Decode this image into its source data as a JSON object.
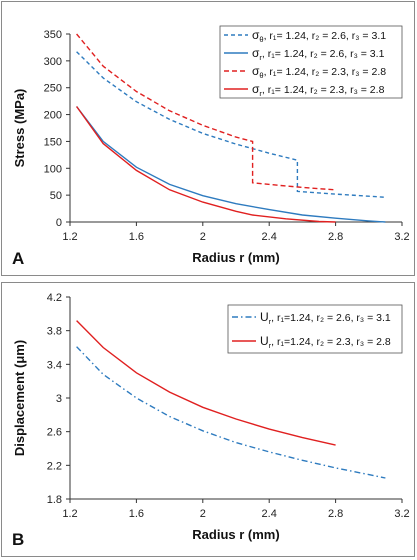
{
  "chart_data": [
    {
      "panel_label": "A",
      "type": "line",
      "xlabel": "Radius r (mm)",
      "ylabel": "Stress (MPa)",
      "xlim": [
        1.2,
        3.2
      ],
      "ylim": [
        0,
        350
      ],
      "xticks": [
        "1.2",
        "1.6",
        "2",
        "2.4",
        "2.8",
        "3.2"
      ],
      "yticks": [
        "0",
        "50",
        "100",
        "150",
        "200",
        "250",
        "300",
        "350"
      ],
      "grid": false,
      "legend_position": "top-right",
      "series": [
        {
          "symbol": "σ",
          "sub": "θ",
          "legend_text": ", r₁= 1.24, r₂ = 2.6, r₃ = 3.1",
          "color": "#2e7bbf",
          "dash": "4,3",
          "points": [
            [
              1.24,
              317
            ],
            [
              1.4,
              268
            ],
            [
              1.6,
              224
            ],
            [
              1.8,
              191
            ],
            [
              2.0,
              165
            ],
            [
              2.2,
              145
            ],
            [
              2.4,
              128
            ],
            [
              2.57,
              115
            ],
            [
              2.57,
              57
            ],
            [
              2.8,
              52
            ],
            [
              3.0,
              48
            ],
            [
              3.1,
              46
            ]
          ]
        },
        {
          "symbol": "σ",
          "sub": "r",
          "legend_text": ", r₁= 1.24, r₂ = 2.6, r₃ = 3.1",
          "color": "#2e7bbf",
          "dash": "",
          "points": [
            [
              1.24,
              215
            ],
            [
              1.4,
              150
            ],
            [
              1.6,
              102
            ],
            [
              1.8,
              70
            ],
            [
              2.0,
              49
            ],
            [
              2.2,
              34
            ],
            [
              2.4,
              23
            ],
            [
              2.6,
              13
            ],
            [
              2.8,
              7
            ],
            [
              3.0,
              2
            ],
            [
              3.1,
              0
            ]
          ]
        },
        {
          "symbol": "σ",
          "sub": "θ",
          "legend_text": ", r₁= 1.24, r₂ = 2.3, r₃ = 2.8",
          "color": "#e02020",
          "dash": "5,3",
          "points": [
            [
              1.24,
              350
            ],
            [
              1.4,
              290
            ],
            [
              1.6,
              243
            ],
            [
              1.8,
              207
            ],
            [
              2.0,
              180
            ],
            [
              2.2,
              158
            ],
            [
              2.3,
              150
            ],
            [
              2.3,
              73
            ],
            [
              2.5,
              67
            ],
            [
              2.7,
              62
            ],
            [
              2.8,
              60
            ]
          ]
        },
        {
          "symbol": "σ",
          "sub": "r",
          "legend_text": ", r₁= 1.24, r₂ = 2.3, r₃ = 2.8",
          "color": "#e02020",
          "dash": "",
          "points": [
            [
              1.24,
              215
            ],
            [
              1.4,
              146
            ],
            [
              1.6,
              96
            ],
            [
              1.8,
              60
            ],
            [
              2.0,
              37
            ],
            [
              2.2,
              20
            ],
            [
              2.3,
              13
            ],
            [
              2.5,
              6
            ],
            [
              2.7,
              1
            ],
            [
              2.8,
              0
            ]
          ]
        }
      ]
    },
    {
      "panel_label": "B",
      "type": "line",
      "xlabel": "Radius r (mm)",
      "ylabel": "Displacement (μm)",
      "xlim": [
        1.2,
        3.2
      ],
      "ylim": [
        1.8,
        4.2
      ],
      "xticks": [
        "1.2",
        "1.6",
        "2",
        "2.4",
        "2.8",
        "3.2"
      ],
      "yticks": [
        "1.8",
        "2.2",
        "2.6",
        "3",
        "3.4",
        "3.8",
        "4.2"
      ],
      "grid": false,
      "legend_position": "top-right",
      "series": [
        {
          "symbol": "U",
          "sub": "r",
          "legend_text": ", r₁=1.24, r₂ = 2.6, r₃ = 3.1",
          "color": "#2e7bbf",
          "dash": "6,3,1.5,3",
          "points": [
            [
              1.24,
              3.61
            ],
            [
              1.4,
              3.28
            ],
            [
              1.6,
              3.0
            ],
            [
              1.8,
              2.78
            ],
            [
              2.0,
              2.61
            ],
            [
              2.2,
              2.47
            ],
            [
              2.4,
              2.36
            ],
            [
              2.6,
              2.26
            ],
            [
              2.8,
              2.17
            ],
            [
              3.0,
              2.09
            ],
            [
              3.1,
              2.05
            ]
          ]
        },
        {
          "symbol": "U",
          "sub": "r",
          "legend_text": ", r₁=1.24, r₂ = 2.3, r₃ = 2.8",
          "color": "#e02020",
          "dash": "",
          "points": [
            [
              1.24,
              3.92
            ],
            [
              1.4,
              3.6
            ],
            [
              1.6,
              3.3
            ],
            [
              1.8,
              3.07
            ],
            [
              2.0,
              2.89
            ],
            [
              2.2,
              2.75
            ],
            [
              2.4,
              2.63
            ],
            [
              2.6,
              2.53
            ],
            [
              2.8,
              2.44
            ]
          ]
        }
      ]
    }
  ]
}
